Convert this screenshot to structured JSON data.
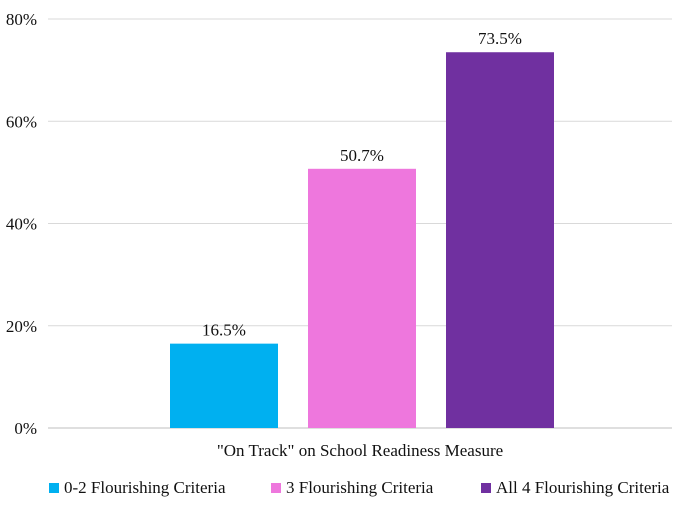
{
  "chart_data": {
    "type": "bar",
    "title": "",
    "xlabel": "\"On Track\"  on School Readiness Measure",
    "ylabel": "",
    "ylim": [
      0,
      80
    ],
    "y_ticks": [
      "0%",
      "20%",
      "40%",
      "60%",
      "80%"
    ],
    "grid": true,
    "legend_position": "bottom",
    "categories": [
      "\"On Track\"  on School Readiness Measure"
    ],
    "series": [
      {
        "name": "0-2 Flourishing Criteria",
        "values": [
          16.5
        ],
        "label": "16.5%",
        "color": "#00b0f0"
      },
      {
        "name": "3 Flourishing Criteria",
        "values": [
          50.7
        ],
        "label": "50.7%",
        "color": "#ee77dd"
      },
      {
        "name": "All 4 Flourishing Criteria",
        "values": [
          73.5
        ],
        "label": "73.5%",
        "color": "#7030a0"
      }
    ]
  }
}
